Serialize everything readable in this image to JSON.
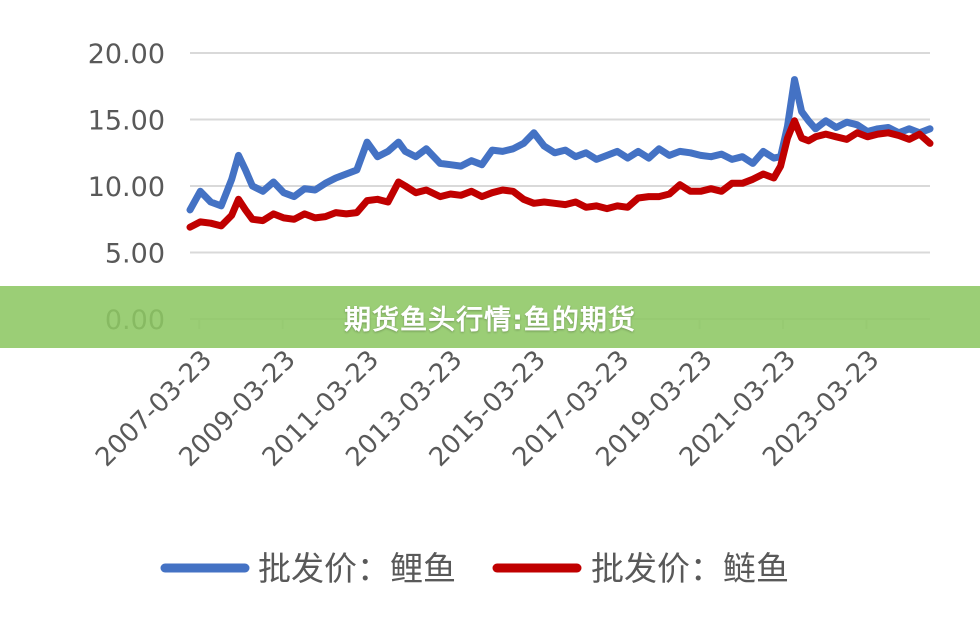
{
  "banner": {
    "title": "期货鱼头行情:鱼的期货"
  },
  "chart_data": {
    "type": "line",
    "title": "",
    "xlabel": "",
    "ylabel": "",
    "ylim": [
      0,
      20
    ],
    "yticks": [
      "0.00",
      "5.00",
      "10.00",
      "15.00",
      "20.00"
    ],
    "xticks": [
      "2007-03-23",
      "2009-03-23",
      "2011-03-23",
      "2013-03-23",
      "2015-03-23",
      "2017-03-23",
      "2019-03-23",
      "2021-03-23",
      "2023-03-23"
    ],
    "x_range": [
      "2007-01-01",
      "2024-09-30"
    ],
    "grid": true,
    "legend": "bottom",
    "series": [
      {
        "name": "批发价：鲤鱼",
        "color": "#4472c4",
        "x": [
          "2007-01-01",
          "2007-04-01",
          "2007-07-01",
          "2007-10-01",
          "2008-01-01",
          "2008-03-01",
          "2008-05-01",
          "2008-07-01",
          "2008-10-01",
          "2009-01-01",
          "2009-04-01",
          "2009-07-01",
          "2009-10-01",
          "2010-01-01",
          "2010-04-01",
          "2010-07-01",
          "2010-10-01",
          "2011-01-01",
          "2011-04-01",
          "2011-07-01",
          "2011-10-01",
          "2012-01-01",
          "2012-03-01",
          "2012-06-01",
          "2012-09-01",
          "2013-01-01",
          "2013-04-01",
          "2013-07-01",
          "2013-10-01",
          "2014-01-01",
          "2014-04-01",
          "2014-07-01",
          "2014-10-01",
          "2015-01-01",
          "2015-04-01",
          "2015-07-01",
          "2015-10-01",
          "2016-01-01",
          "2016-04-01",
          "2016-07-01",
          "2016-10-01",
          "2017-01-01",
          "2017-04-01",
          "2017-07-01",
          "2017-10-01",
          "2018-01-01",
          "2018-04-01",
          "2018-07-01",
          "2018-10-01",
          "2019-01-01",
          "2019-04-01",
          "2019-07-01",
          "2019-10-01",
          "2020-01-01",
          "2020-04-01",
          "2020-07-01",
          "2020-10-01",
          "2021-01-01",
          "2021-03-01",
          "2021-05-01",
          "2021-07-01",
          "2021-09-01",
          "2021-11-01",
          "2022-01-01",
          "2022-04-01",
          "2022-07-01",
          "2022-10-01",
          "2023-01-01",
          "2023-04-01",
          "2023-07-01",
          "2023-10-01",
          "2024-01-01",
          "2024-04-01",
          "2024-07-01",
          "2024-09-30"
        ],
        "y": [
          8.2,
          9.6,
          8.8,
          8.5,
          10.5,
          12.3,
          11.2,
          10.0,
          9.6,
          10.3,
          9.5,
          9.2,
          9.8,
          9.7,
          10.2,
          10.6,
          10.9,
          11.2,
          13.3,
          12.2,
          12.6,
          13.3,
          12.6,
          12.2,
          12.8,
          11.7,
          11.6,
          11.5,
          11.9,
          11.6,
          12.7,
          12.6,
          12.8,
          13.2,
          14.0,
          13.0,
          12.5,
          12.7,
          12.2,
          12.5,
          12.0,
          12.3,
          12.6,
          12.1,
          12.6,
          12.1,
          12.8,
          12.3,
          12.6,
          12.5,
          12.3,
          12.2,
          12.4,
          12.0,
          12.2,
          11.7,
          12.6,
          12.1,
          12.2,
          14.5,
          18.0,
          15.6,
          14.9,
          14.3,
          14.9,
          14.4,
          14.8,
          14.6,
          14.1,
          14.3,
          14.4,
          14.0,
          14.3,
          14.0,
          14.3
        ]
      },
      {
        "name": "批发价：鲢鱼",
        "color": "#c00000",
        "x": [
          "2007-01-01",
          "2007-04-01",
          "2007-07-01",
          "2007-10-01",
          "2008-01-01",
          "2008-03-01",
          "2008-05-01",
          "2008-07-01",
          "2008-10-01",
          "2009-01-01",
          "2009-04-01",
          "2009-07-01",
          "2009-10-01",
          "2010-01-01",
          "2010-04-01",
          "2010-07-01",
          "2010-10-01",
          "2011-01-01",
          "2011-04-01",
          "2011-07-01",
          "2011-10-01",
          "2012-01-01",
          "2012-03-01",
          "2012-06-01",
          "2012-09-01",
          "2013-01-01",
          "2013-04-01",
          "2013-07-01",
          "2013-10-01",
          "2014-01-01",
          "2014-04-01",
          "2014-07-01",
          "2014-10-01",
          "2015-01-01",
          "2015-04-01",
          "2015-07-01",
          "2015-10-01",
          "2016-01-01",
          "2016-04-01",
          "2016-07-01",
          "2016-10-01",
          "2017-01-01",
          "2017-04-01",
          "2017-07-01",
          "2017-10-01",
          "2018-01-01",
          "2018-04-01",
          "2018-07-01",
          "2018-10-01",
          "2019-01-01",
          "2019-04-01",
          "2019-07-01",
          "2019-10-01",
          "2020-01-01",
          "2020-04-01",
          "2020-07-01",
          "2020-10-01",
          "2021-01-01",
          "2021-03-01",
          "2021-05-01",
          "2021-07-01",
          "2021-09-01",
          "2021-11-01",
          "2022-01-01",
          "2022-04-01",
          "2022-07-01",
          "2022-10-01",
          "2023-01-01",
          "2023-04-01",
          "2023-07-01",
          "2023-10-01",
          "2024-01-01",
          "2024-04-01",
          "2024-07-01",
          "2024-09-30"
        ],
        "y": [
          6.9,
          7.3,
          7.2,
          7.0,
          7.8,
          9.0,
          8.2,
          7.5,
          7.4,
          7.9,
          7.6,
          7.5,
          7.9,
          7.6,
          7.7,
          8.0,
          7.9,
          8.0,
          8.9,
          9.0,
          8.8,
          10.3,
          10.0,
          9.5,
          9.7,
          9.2,
          9.4,
          9.3,
          9.6,
          9.2,
          9.5,
          9.7,
          9.6,
          9.0,
          8.7,
          8.8,
          8.7,
          8.6,
          8.8,
          8.4,
          8.5,
          8.3,
          8.5,
          8.4,
          9.1,
          9.2,
          9.2,
          9.4,
          10.1,
          9.6,
          9.6,
          9.8,
          9.6,
          10.2,
          10.2,
          10.5,
          10.9,
          10.6,
          11.5,
          13.6,
          14.9,
          13.6,
          13.4,
          13.7,
          13.9,
          13.7,
          13.5,
          14.0,
          13.7,
          13.9,
          14.0,
          13.8,
          13.5,
          13.9,
          13.2
        ]
      }
    ]
  }
}
